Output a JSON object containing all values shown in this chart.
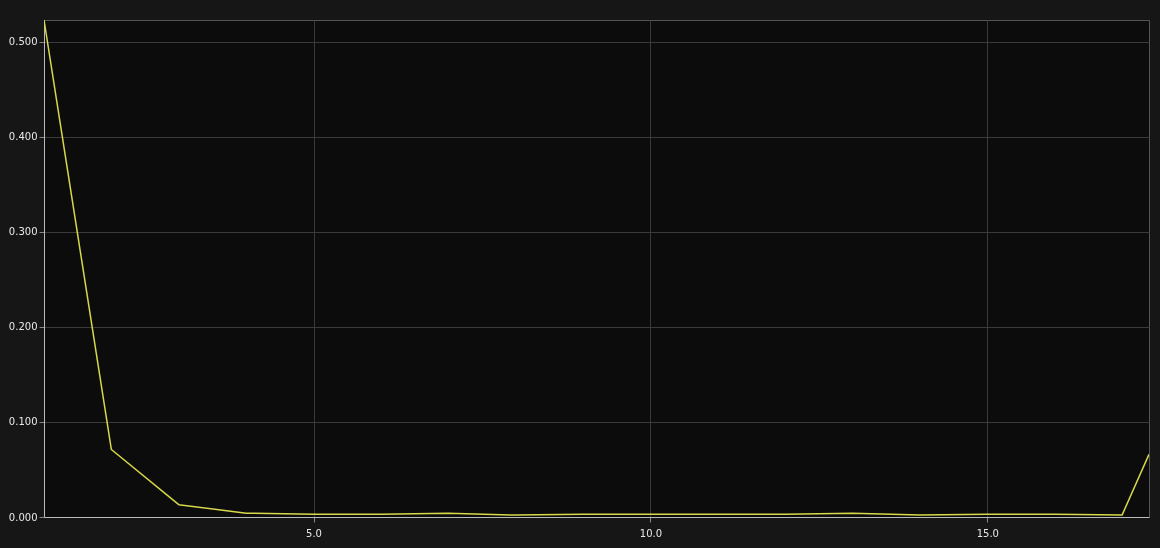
{
  "chart_data": {
    "type": "line",
    "x": [
      1,
      2,
      3,
      4,
      5,
      6,
      7,
      8,
      9,
      10,
      11,
      12,
      13,
      14,
      15,
      16,
      17,
      17.4
    ],
    "series": [
      {
        "color": "#d8d84a",
        "values": [
          0.523,
          0.071,
          0.013,
          0.004,
          0.003,
          0.003,
          0.004,
          0.002,
          0.003,
          0.003,
          0.003,
          0.003,
          0.004,
          0.002,
          0.003,
          0.003,
          0.002,
          0.066
        ]
      }
    ],
    "xlim": [
      1,
      17.4
    ],
    "ylim": [
      0,
      0.523
    ],
    "xticks": [
      {
        "value": 5,
        "label": "5.0"
      },
      {
        "value": 10,
        "label": "10.0"
      },
      {
        "value": 15,
        "label": "15.0"
      }
    ],
    "yticks": [
      {
        "value": 0,
        "label": "0.000"
      },
      {
        "value": 0.1,
        "label": "0.100"
      },
      {
        "value": 0.2,
        "label": "0.200"
      },
      {
        "value": 0.3,
        "label": "0.300"
      },
      {
        "value": 0.4,
        "label": "0.400"
      },
      {
        "value": 0.5,
        "label": "0.500"
      }
    ],
    "grid": true,
    "marker": "none",
    "line_style": "solid"
  }
}
